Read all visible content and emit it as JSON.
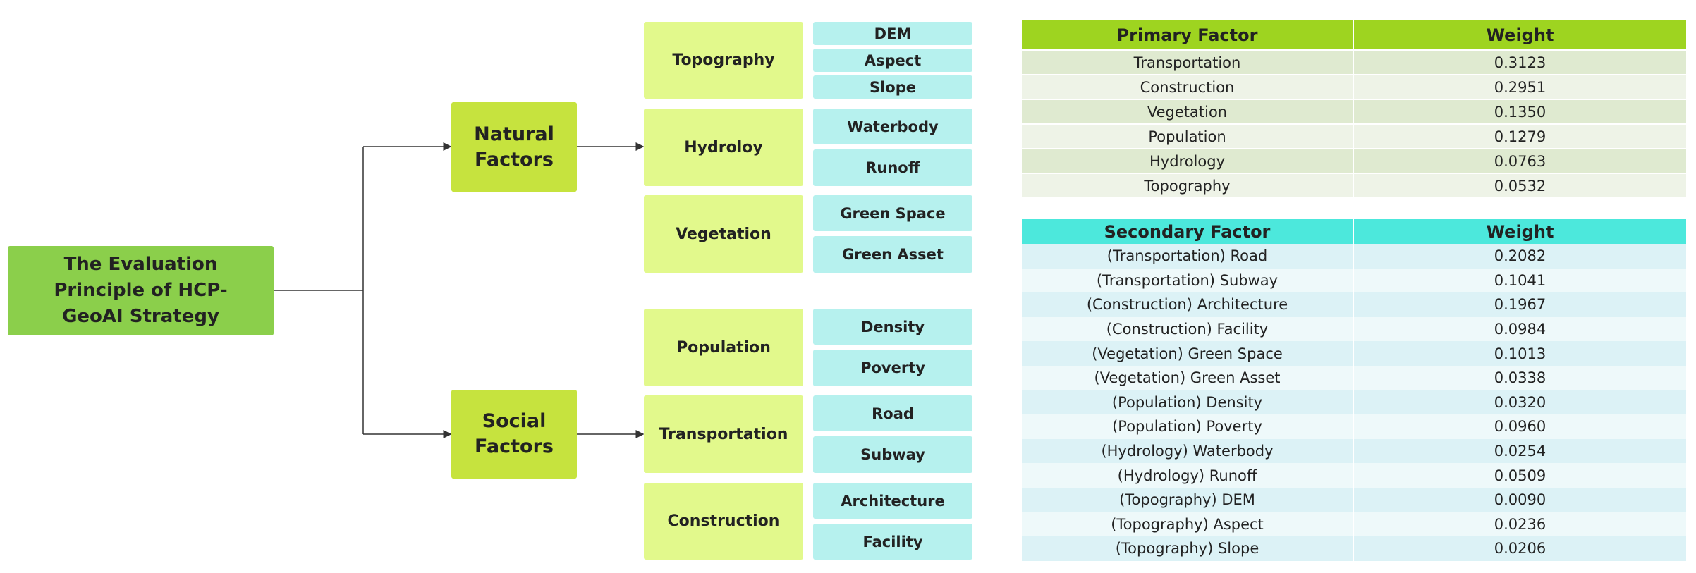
{
  "tree": {
    "root": "The Evaluation Principle of HCP-GeoAI Strategy",
    "natural": "Natural Factors",
    "social": "Social Factors",
    "natural_groups": [
      {
        "label": "Topography",
        "items": [
          "DEM",
          "Aspect",
          "Slope"
        ]
      },
      {
        "label": "Hydroloy",
        "items": [
          "Waterbody",
          "Runoff"
        ]
      },
      {
        "label": "Vegetation",
        "items": [
          "Green Space",
          "Green Asset"
        ]
      }
    ],
    "social_groups": [
      {
        "label": "Population",
        "items": [
          "Density",
          "Poverty"
        ]
      },
      {
        "label": "Transportation",
        "items": [
          "Road",
          "Subway"
        ]
      },
      {
        "label": "Construction",
        "items": [
          "Architecture",
          "Facility"
        ]
      }
    ]
  },
  "primary_table": {
    "headers": [
      "Primary Factor",
      "Weight"
    ],
    "rows": [
      [
        "Transportation",
        "0.3123"
      ],
      [
        "Construction",
        "0.2951"
      ],
      [
        "Vegetation",
        "0.1350"
      ],
      [
        "Population",
        "0.1279"
      ],
      [
        "Hydrology",
        "0.0763"
      ],
      [
        "Topography",
        "0.0532"
      ]
    ]
  },
  "secondary_table": {
    "headers": [
      "Secondary Factor",
      "Weight"
    ],
    "rows": [
      [
        "(Transportation) Road",
        "0.2082"
      ],
      [
        "(Transportation) Subway",
        "0.1041"
      ],
      [
        "(Construction) Architecture",
        "0.1967"
      ],
      [
        "(Construction) Facility",
        "0.0984"
      ],
      [
        "(Vegetation) Green Space",
        "0.1013"
      ],
      [
        "(Vegetation) Green Asset",
        "0.0338"
      ],
      [
        "(Population) Density",
        "0.0320"
      ],
      [
        "(Population) Poverty",
        "0.0960"
      ],
      [
        "(Hydrology) Waterbody",
        "0.0254"
      ],
      [
        "(Hydrology) Runoff",
        "0.0509"
      ],
      [
        "(Topography) DEM",
        "0.0090"
      ],
      [
        "(Topography) Aspect",
        "0.0236"
      ],
      [
        "(Topography) Slope",
        "0.0206"
      ]
    ]
  },
  "colors": {
    "root": "#8bcf4b",
    "level1": "#c6e33e",
    "level2": "#e2f98c",
    "level3": "#b6f1ee",
    "primary_header": "#9ed420",
    "secondary_header": "#4ce8dc"
  }
}
